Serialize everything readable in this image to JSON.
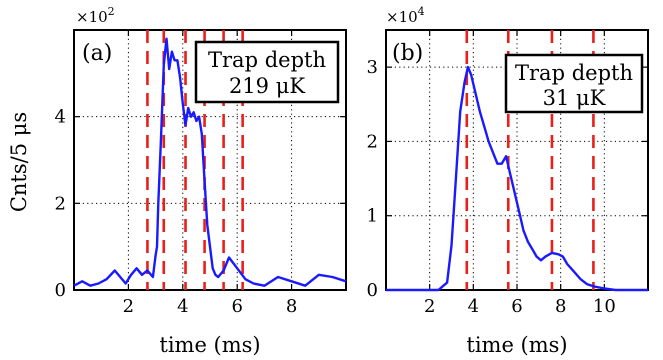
{
  "figure": {
    "ylabel": "Cnts/5 μs",
    "xlabel": "time (ms)"
  },
  "chart_data": [
    {
      "type": "line",
      "panel_label": "(a)",
      "annotation": [
        "Trap depth",
        "219 μK"
      ],
      "multiplier": "×10",
      "multiplier_exp": "2",
      "xlabel": "time (ms)",
      "ylabel": "Cnts/5 μs",
      "xlim": [
        0,
        10
      ],
      "ylim": [
        0,
        6
      ],
      "xticks": [
        2,
        4,
        6,
        8
      ],
      "yticks": [
        0,
        2,
        4
      ],
      "grid": true,
      "grid_style": "dotted",
      "line_color": "#1a1aff",
      "marker_color": "#e8201a",
      "markers_x": [
        2.7,
        3.3,
        4.1,
        4.8,
        5.5,
        6.2
      ],
      "series": [
        {
          "x": [
            0.0,
            0.3,
            0.6,
            0.9,
            1.2,
            1.5,
            1.7,
            1.9,
            2.1,
            2.3,
            2.5,
            2.7,
            2.9,
            3.0,
            3.05,
            3.1,
            3.2,
            3.3,
            3.4,
            3.5,
            3.6,
            3.7,
            3.8,
            3.9,
            4.0,
            4.1,
            4.2,
            4.3,
            4.4,
            4.5,
            4.6,
            4.7,
            4.8,
            4.9,
            5.0,
            5.1,
            5.2,
            5.3,
            5.5,
            5.7,
            6.0,
            6.3,
            6.6,
            7.0,
            7.5,
            8.0,
            8.5,
            9.0,
            9.5,
            10.0
          ],
          "y": [
            0.1,
            0.2,
            0.1,
            0.15,
            0.25,
            0.45,
            0.3,
            0.15,
            0.35,
            0.5,
            0.35,
            0.45,
            0.3,
            0.8,
            1.0,
            2.0,
            3.5,
            5.2,
            5.8,
            5.1,
            5.5,
            5.3,
            5.3,
            4.9,
            4.3,
            3.8,
            4.2,
            4.0,
            4.1,
            3.9,
            4.0,
            3.6,
            2.5,
            1.5,
            1.0,
            0.5,
            0.35,
            0.3,
            0.45,
            0.75,
            0.5,
            0.25,
            0.15,
            0.1,
            0.3,
            0.2,
            0.1,
            0.35,
            0.3,
            0.2
          ]
        }
      ]
    },
    {
      "type": "line",
      "panel_label": "(b)",
      "annotation": [
        "Trap depth",
        "31 μK"
      ],
      "multiplier": "×10",
      "multiplier_exp": "4",
      "xlabel": "time (ms)",
      "xlim": [
        0,
        12
      ],
      "ylim": [
        0,
        3.5
      ],
      "xticks": [
        2,
        4,
        6,
        8,
        10
      ],
      "yticks": [
        0,
        1,
        2,
        3
      ],
      "grid": true,
      "grid_style": "dotted",
      "line_color": "#1a1aff",
      "marker_color": "#e8201a",
      "markers_x": [
        3.7,
        5.6,
        7.6,
        9.5
      ],
      "series": [
        {
          "x": [
            0.0,
            2.4,
            2.8,
            3.0,
            3.2,
            3.4,
            3.6,
            3.75,
            3.9,
            4.1,
            4.3,
            4.5,
            4.7,
            4.9,
            5.1,
            5.3,
            5.5,
            5.7,
            5.9,
            6.1,
            6.3,
            6.5,
            6.7,
            6.9,
            7.1,
            7.3,
            7.6,
            7.9,
            8.1,
            8.3,
            8.6,
            8.9,
            9.2,
            9.5,
            10.0,
            10.5,
            11.0,
            12.0
          ],
          "y": [
            0.0,
            0.0,
            0.1,
            0.6,
            1.5,
            2.4,
            2.8,
            3.0,
            2.9,
            2.65,
            2.4,
            2.2,
            2.0,
            1.85,
            1.7,
            1.7,
            1.8,
            1.55,
            1.3,
            1.05,
            0.8,
            0.65,
            0.55,
            0.45,
            0.4,
            0.45,
            0.5,
            0.48,
            0.45,
            0.35,
            0.25,
            0.15,
            0.08,
            0.05,
            0.02,
            0.0,
            0.0,
            0.0
          ]
        }
      ]
    }
  ]
}
